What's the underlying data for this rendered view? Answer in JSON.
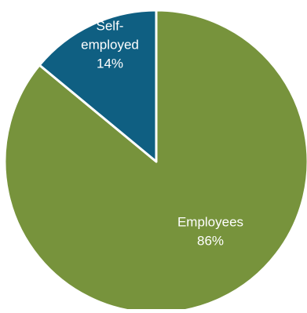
{
  "chart_data": {
    "type": "pie",
    "slices": [
      {
        "label_lines": [
          "Employees"
        ],
        "percent_label": "86%",
        "value": 86,
        "color": "#77933c"
      },
      {
        "label_lines": [
          "Self-",
          "employed"
        ],
        "percent_label": "14%",
        "value": 14,
        "color": "#0f5f82"
      }
    ],
    "start_direction": "top",
    "order": "clockwise",
    "slice_border_color": "#ffffff",
    "label_color": "#ffffff"
  }
}
